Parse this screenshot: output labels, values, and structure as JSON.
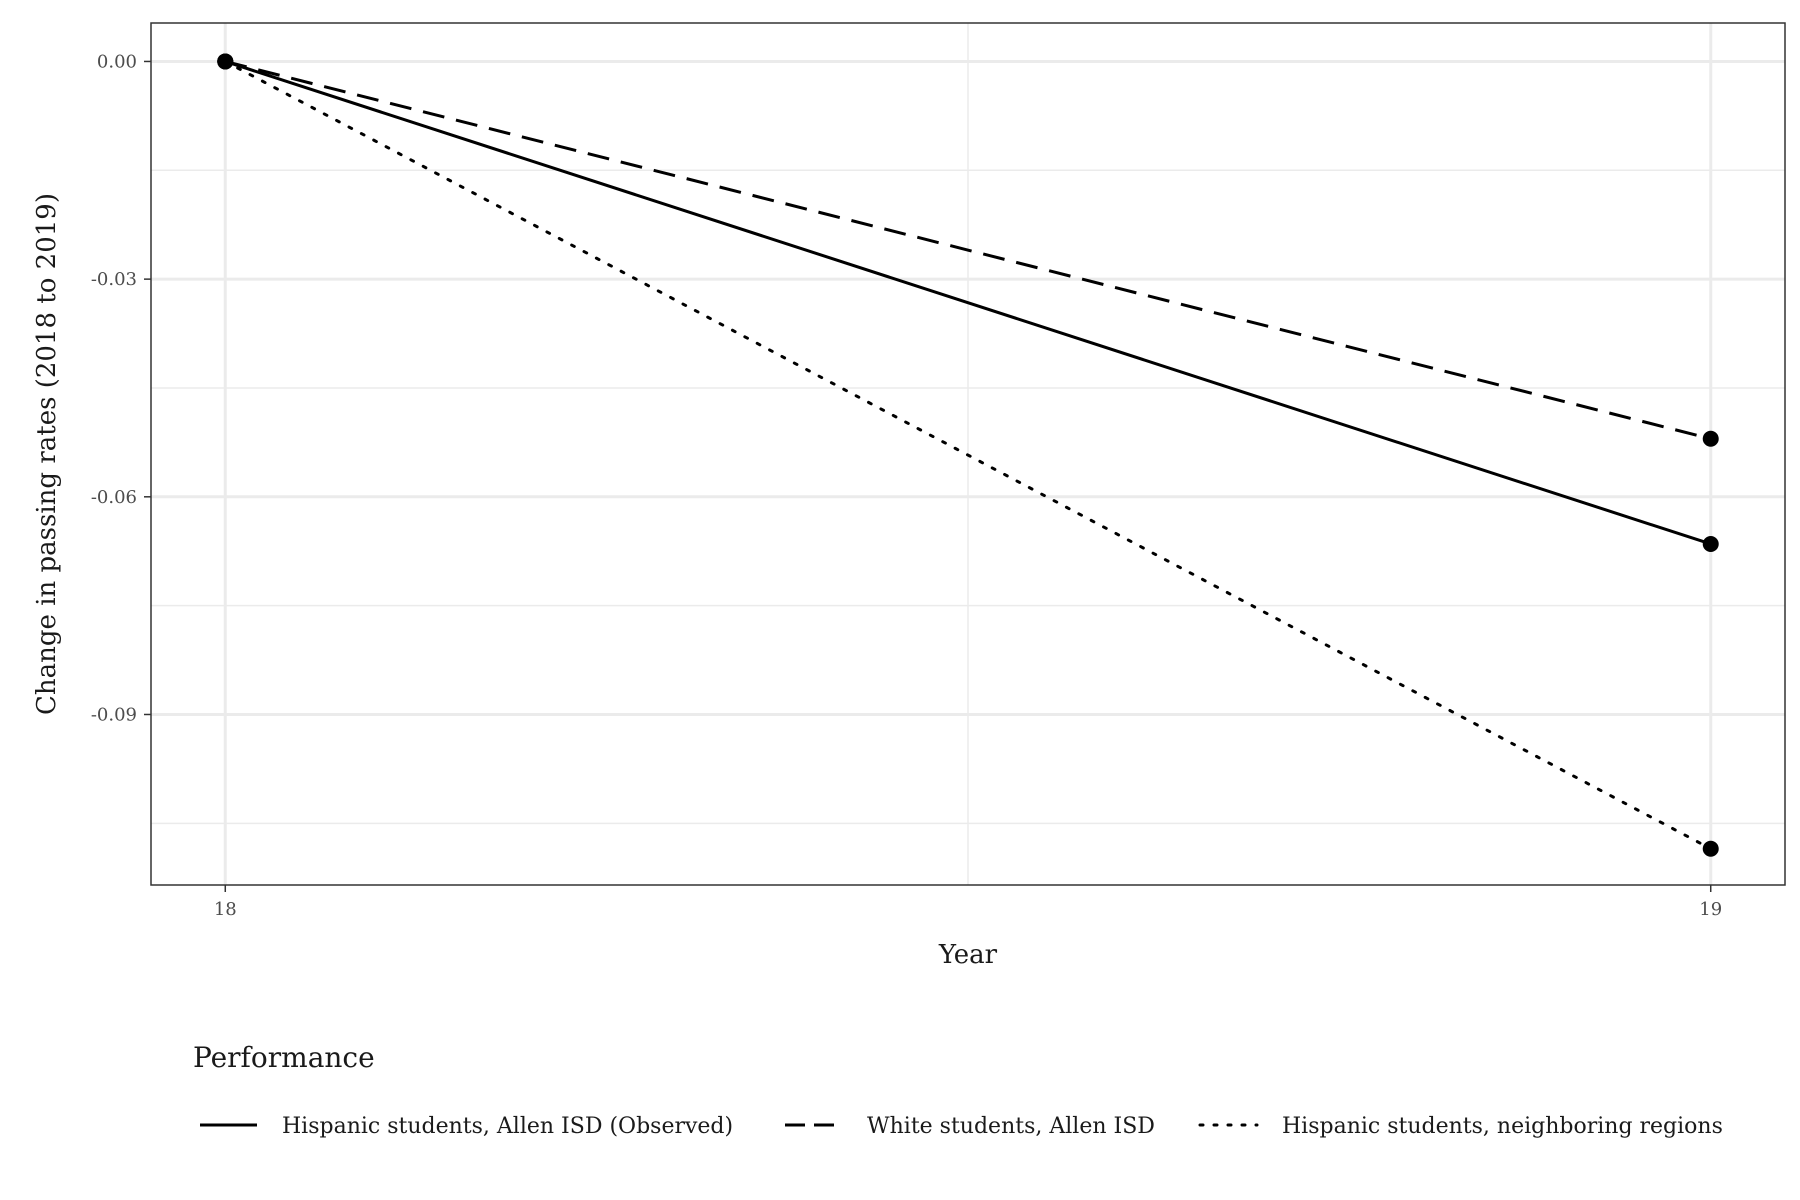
{
  "chart_data": {
    "type": "line",
    "title": "",
    "xlabel": "Year",
    "ylabel": "Change in passing rates (2018 to 2019)",
    "x": [
      18,
      19
    ],
    "x_ticks": [
      "18",
      "19"
    ],
    "y_ticks": [
      "0.00",
      "-0.03",
      "-0.06",
      "-0.09"
    ],
    "y_tick_values": [
      0.0,
      -0.03,
      -0.06,
      -0.09
    ],
    "ylim": [
      -0.1135,
      0.0053
    ],
    "xlim": [
      17.95,
      19.05
    ],
    "grid": true,
    "legend_title": "Performance",
    "legend_position": "bottom",
    "series": [
      {
        "name": "Hispanic students, Allen ISD (Observed)",
        "linestyle": "solid",
        "values": [
          0.0,
          -0.0665
        ]
      },
      {
        "name": "White students, Allen ISD",
        "linestyle": "dashed",
        "values": [
          0.0,
          -0.052
        ]
      },
      {
        "name": "Hispanic students, neighboring regions",
        "linestyle": "dotted",
        "values": [
          0.0,
          -0.1085
        ]
      }
    ],
    "colors": {
      "line": "#000000",
      "grid": "#ebebeb",
      "panel_border": "#333333"
    }
  }
}
